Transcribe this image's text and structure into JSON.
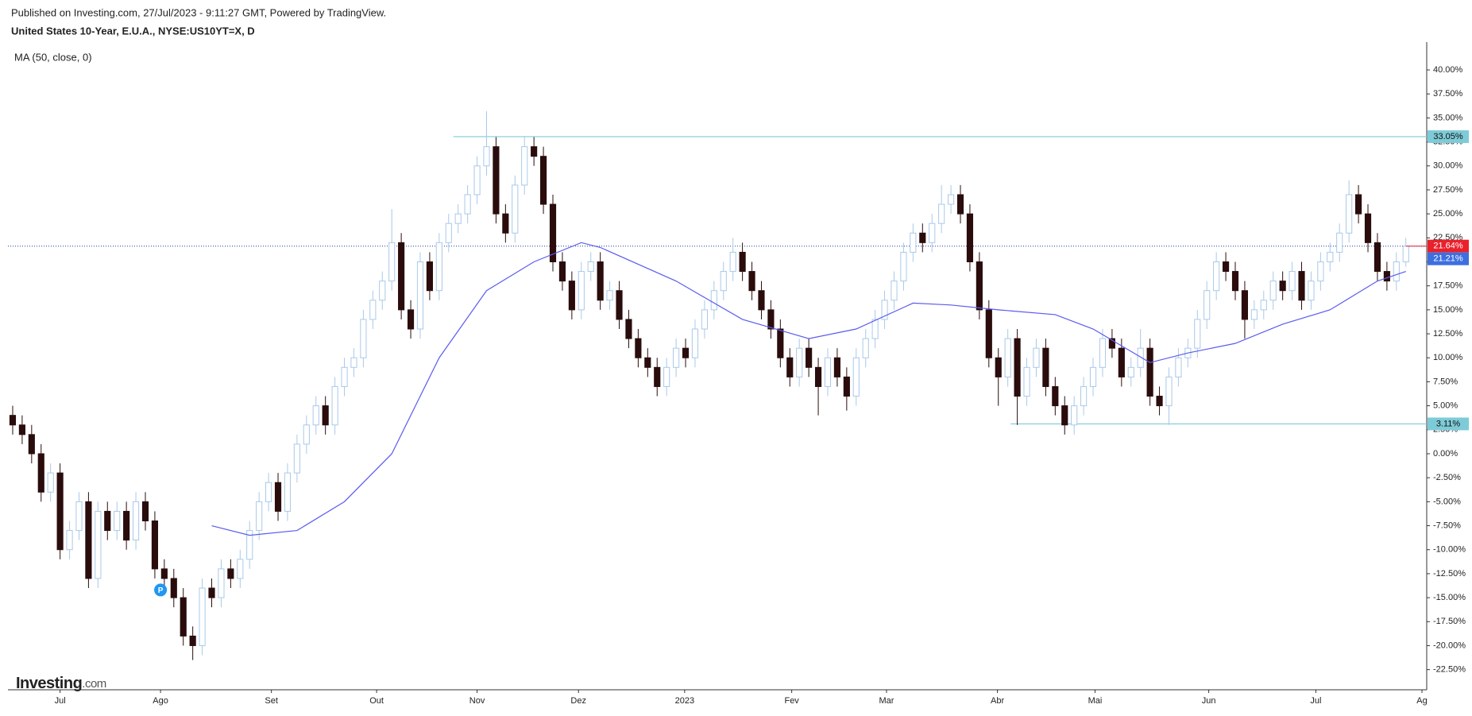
{
  "header": {
    "published": "Published on Investing.com, 27/Jul/2023 - 9:11:27 GMT, Powered by TradingView.",
    "symbol": "United States 10-Year, E.U.A., NYSE:US10YT=X, D"
  },
  "logo": [
    "Investing",
    ".com"
  ],
  "chart_data": {
    "type": "candlestick",
    "up_color": "#a9c9ea",
    "down_color": "#2a0c0c",
    "xlim": [
      -0.5,
      149.2
    ],
    "ylim": [
      -24.6,
      42.9
    ],
    "xticks": [
      {
        "value": 5,
        "label": "Jul"
      },
      {
        "value": 15.6,
        "label": "Ago"
      },
      {
        "value": 27.3,
        "label": "Set"
      },
      {
        "value": 38.4,
        "label": "Out"
      },
      {
        "value": 49,
        "label": "Nov"
      },
      {
        "value": 59.7,
        "label": "Dez"
      },
      {
        "value": 70.9,
        "label": "2023"
      },
      {
        "value": 82.2,
        "label": "Fev"
      },
      {
        "value": 92.2,
        "label": "Mar"
      },
      {
        "value": 103.9,
        "label": "Abr"
      },
      {
        "value": 114.2,
        "label": "Mai"
      },
      {
        "value": 126.2,
        "label": "Jun"
      },
      {
        "value": 137.5,
        "label": "Jul"
      },
      {
        "value": 148.7,
        "label": "Ag"
      }
    ],
    "yticks": [
      {
        "value": 40,
        "label": "40.00%"
      },
      {
        "value": 37.5,
        "label": "37.50%"
      },
      {
        "value": 35,
        "label": "35.00%"
      },
      {
        "value": 32.5,
        "label": "32.50%"
      },
      {
        "value": 30,
        "label": "30.00%"
      },
      {
        "value": 27.5,
        "label": "27.50%"
      },
      {
        "value": 25,
        "label": "25.00%"
      },
      {
        "value": 22.5,
        "label": "22.50%"
      },
      {
        "value": 20,
        "label": "20.00%"
      },
      {
        "value": 17.5,
        "label": "17.50%"
      },
      {
        "value": 15,
        "label": "15.00%"
      },
      {
        "value": 12.5,
        "label": "12.50%"
      },
      {
        "value": 10,
        "label": "10.00%"
      },
      {
        "value": 7.5,
        "label": "7.50%"
      },
      {
        "value": 5,
        "label": "5.00%"
      },
      {
        "value": 2.5,
        "label": "2.50%"
      },
      {
        "value": 0,
        "label": "0.00%"
      },
      {
        "value": -2.5,
        "label": "-2.50%"
      },
      {
        "value": -5,
        "label": "-5.00%"
      },
      {
        "value": -7.5,
        "label": "-7.50%"
      },
      {
        "value": -10,
        "label": "-10.00%"
      },
      {
        "value": -12.5,
        "label": "-12.50%"
      },
      {
        "value": -15,
        "label": "-15.00%"
      },
      {
        "value": -17.5,
        "label": "-17.50%"
      },
      {
        "value": -20,
        "label": "-20.00%"
      },
      {
        "value": -22.5,
        "label": "-22.50%"
      }
    ],
    "candles": [
      [
        4,
        5,
        2,
        3
      ],
      [
        3,
        4,
        1,
        2
      ],
      [
        2,
        3,
        -1,
        0
      ],
      [
        0,
        1,
        -5,
        -4
      ],
      [
        -4,
        -1,
        -5,
        -2
      ],
      [
        -2,
        -1,
        -11,
        -10
      ],
      [
        -10,
        -7,
        -11,
        -8
      ],
      [
        -8,
        -4,
        -9,
        -5
      ],
      [
        -5,
        -4,
        -14,
        -13
      ],
      [
        -13,
        -5,
        -14,
        -6
      ],
      [
        -6,
        -5,
        -9,
        -8
      ],
      [
        -8,
        -5,
        -9,
        -6
      ],
      [
        -6,
        -5,
        -10,
        -9
      ],
      [
        -9,
        -4,
        -10,
        -5
      ],
      [
        -5,
        -4,
        -8,
        -7
      ],
      [
        -7,
        -6,
        -13,
        -12
      ],
      [
        -12,
        -11,
        -14,
        -13
      ],
      [
        -13,
        -12,
        -16,
        -15
      ],
      [
        -15,
        -14,
        -20,
        -19
      ],
      [
        -19,
        -18,
        -21.5,
        -20
      ],
      [
        -20,
        -13,
        -21,
        -14
      ],
      [
        -14,
        -13,
        -16,
        -15
      ],
      [
        -15,
        -11,
        -16,
        -12
      ],
      [
        -12,
        -11,
        -14,
        -13
      ],
      [
        -13,
        -10,
        -14,
        -11
      ],
      [
        -11,
        -7,
        -12,
        -8
      ],
      [
        -8,
        -4,
        -9,
        -5
      ],
      [
        -5,
        -2,
        -6,
        -3
      ],
      [
        -3,
        -2,
        -7,
        -6
      ],
      [
        -6,
        -1,
        -7,
        -2
      ],
      [
        -2,
        2,
        -3,
        1
      ],
      [
        1,
        4,
        0,
        3
      ],
      [
        3,
        6,
        2,
        5
      ],
      [
        5,
        6,
        2,
        3
      ],
      [
        3,
        8,
        2,
        7
      ],
      [
        7,
        10,
        6,
        9
      ],
      [
        9,
        11,
        8,
        10
      ],
      [
        10,
        15,
        9,
        14
      ],
      [
        14,
        17,
        13,
        16
      ],
      [
        16,
        19,
        15,
        18
      ],
      [
        18,
        25.5,
        17,
        22
      ],
      [
        22,
        23,
        14,
        15
      ],
      [
        15,
        16,
        12,
        13
      ],
      [
        13,
        21,
        12,
        20
      ],
      [
        20,
        21,
        16,
        17
      ],
      [
        17,
        23,
        16,
        22
      ],
      [
        22,
        25,
        21,
        24
      ],
      [
        24,
        26,
        23,
        25
      ],
      [
        25,
        28,
        24,
        27
      ],
      [
        27,
        31,
        26,
        30
      ],
      [
        30,
        35.7,
        29,
        32
      ],
      [
        32,
        33,
        24,
        25
      ],
      [
        25,
        26,
        22,
        23
      ],
      [
        23,
        29,
        22,
        28
      ],
      [
        28,
        33,
        27,
        32
      ],
      [
        32,
        33,
        30,
        31
      ],
      [
        31,
        32,
        25,
        26
      ],
      [
        26,
        27,
        19,
        20
      ],
      [
        20,
        21,
        17,
        18
      ],
      [
        18,
        19,
        14,
        15
      ],
      [
        15,
        20,
        14,
        19
      ],
      [
        19,
        21,
        18,
        20
      ],
      [
        20,
        21,
        15,
        16
      ],
      [
        16,
        18,
        15,
        17
      ],
      [
        17,
        18,
        13,
        14
      ],
      [
        14,
        15,
        11,
        12
      ],
      [
        12,
        13,
        9,
        10
      ],
      [
        10,
        11,
        8,
        9
      ],
      [
        9,
        10,
        6,
        7
      ],
      [
        7,
        10,
        6,
        9
      ],
      [
        9,
        12,
        8,
        11
      ],
      [
        11,
        12,
        9,
        10
      ],
      [
        10,
        14,
        9,
        13
      ],
      [
        13,
        16,
        12,
        15
      ],
      [
        15,
        18,
        14,
        17
      ],
      [
        17,
        20,
        16,
        19
      ],
      [
        19,
        22.5,
        18,
        21
      ],
      [
        21,
        22,
        18,
        19
      ],
      [
        19,
        20,
        16,
        17
      ],
      [
        17,
        18,
        14,
        15
      ],
      [
        15,
        16,
        12,
        13
      ],
      [
        13,
        14,
        9,
        10
      ],
      [
        10,
        11,
        7,
        8
      ],
      [
        8,
        12,
        7,
        11
      ],
      [
        11,
        12,
        8,
        9
      ],
      [
        9,
        10,
        4,
        7
      ],
      [
        7,
        11,
        6,
        10
      ],
      [
        10,
        11,
        7,
        8
      ],
      [
        8,
        9,
        4.5,
        6
      ],
      [
        6,
        11,
        5,
        10
      ],
      [
        10,
        13,
        9,
        12
      ],
      [
        12,
        15,
        11,
        14
      ],
      [
        14,
        17,
        13,
        16
      ],
      [
        16,
        19,
        15,
        18
      ],
      [
        18,
        22,
        17,
        21
      ],
      [
        21,
        24,
        20,
        23
      ],
      [
        23,
        24,
        21,
        22
      ],
      [
        22,
        25,
        21,
        24
      ],
      [
        24,
        28,
        23,
        26
      ],
      [
        26,
        28,
        25,
        27
      ],
      [
        27,
        28,
        24,
        25
      ],
      [
        25,
        26,
        19,
        20
      ],
      [
        20,
        21,
        14,
        15
      ],
      [
        15,
        16,
        9,
        10
      ],
      [
        10,
        11,
        5,
        8
      ],
      [
        8,
        13,
        7,
        12
      ],
      [
        12,
        13,
        3,
        6
      ],
      [
        6,
        10,
        5,
        9
      ],
      [
        9,
        12,
        8,
        11
      ],
      [
        11,
        12,
        6,
        7
      ],
      [
        7,
        8,
        4,
        5
      ],
      [
        5,
        6,
        2,
        3
      ],
      [
        3,
        6,
        2,
        5
      ],
      [
        5,
        8,
        4,
        7
      ],
      [
        7,
        10,
        6,
        9
      ],
      [
        9,
        13,
        8,
        12
      ],
      [
        12,
        13,
        10,
        11
      ],
      [
        11,
        12,
        7,
        8
      ],
      [
        8,
        10,
        7,
        9
      ],
      [
        9,
        13,
        8,
        11
      ],
      [
        11,
        12,
        5,
        6
      ],
      [
        6,
        7,
        4,
        5
      ],
      [
        5,
        9,
        3,
        8
      ],
      [
        8,
        11,
        7,
        10
      ],
      [
        10,
        12,
        9,
        11
      ],
      [
        11,
        15,
        10,
        14
      ],
      [
        14,
        18,
        13,
        17
      ],
      [
        17,
        21,
        16,
        20
      ],
      [
        20,
        21,
        18,
        19
      ],
      [
        19,
        20,
        16,
        17
      ],
      [
        17,
        18,
        12,
        14
      ],
      [
        14,
        16,
        13,
        15
      ],
      [
        15,
        17,
        14,
        16
      ],
      [
        16,
        19,
        15,
        18
      ],
      [
        18,
        19,
        16,
        17
      ],
      [
        17,
        20,
        16,
        19
      ],
      [
        19,
        20,
        15,
        16
      ],
      [
        16,
        19,
        15,
        18
      ],
      [
        18,
        21,
        17,
        20
      ],
      [
        20,
        22,
        19,
        21
      ],
      [
        21,
        24,
        20,
        23
      ],
      [
        23,
        28.5,
        22,
        27
      ],
      [
        27,
        28,
        24,
        25
      ],
      [
        25,
        26,
        21,
        22
      ],
      [
        22,
        23,
        18,
        19
      ],
      [
        19,
        20,
        17,
        18
      ],
      [
        18,
        21,
        17,
        20
      ],
      [
        20,
        22.5,
        19.5,
        21.64
      ]
    ],
    "ma": {
      "name": "MA (50, close, 0)",
      "color": "#5b5bf0",
      "x": [
        21,
        25,
        30,
        35,
        40,
        45,
        50,
        55,
        60,
        62,
        70,
        77,
        84,
        89,
        95,
        99,
        104,
        110,
        114,
        120,
        124,
        129,
        134,
        139,
        144,
        147
      ],
      "values": [
        -7.5,
        -8.5,
        -8,
        -5,
        0,
        10,
        17,
        20,
        22,
        21.5,
        18,
        14,
        12,
        13,
        15.7,
        15.5,
        15,
        14.5,
        13,
        9.5,
        10.5,
        11.5,
        13.5,
        15,
        18,
        19
      ]
    },
    "levels": [
      {
        "value": 33.05,
        "label": "33.05%",
        "x": 46.5,
        "color": "#7ecbd8"
      },
      {
        "value": 3.11,
        "label": "3.11%",
        "x": 105.3,
        "color": "#7ecbd8"
      }
    ],
    "last_price": {
      "value": 21.64,
      "label": "21.64%",
      "color": "#e8212b"
    },
    "ma_price": {
      "value": 21.21,
      "label": "21.21%",
      "color": "#3d6fe0"
    },
    "marker": {
      "label": "P",
      "x": 15.6,
      "y": -14.2,
      "color": "#2196f3"
    }
  }
}
